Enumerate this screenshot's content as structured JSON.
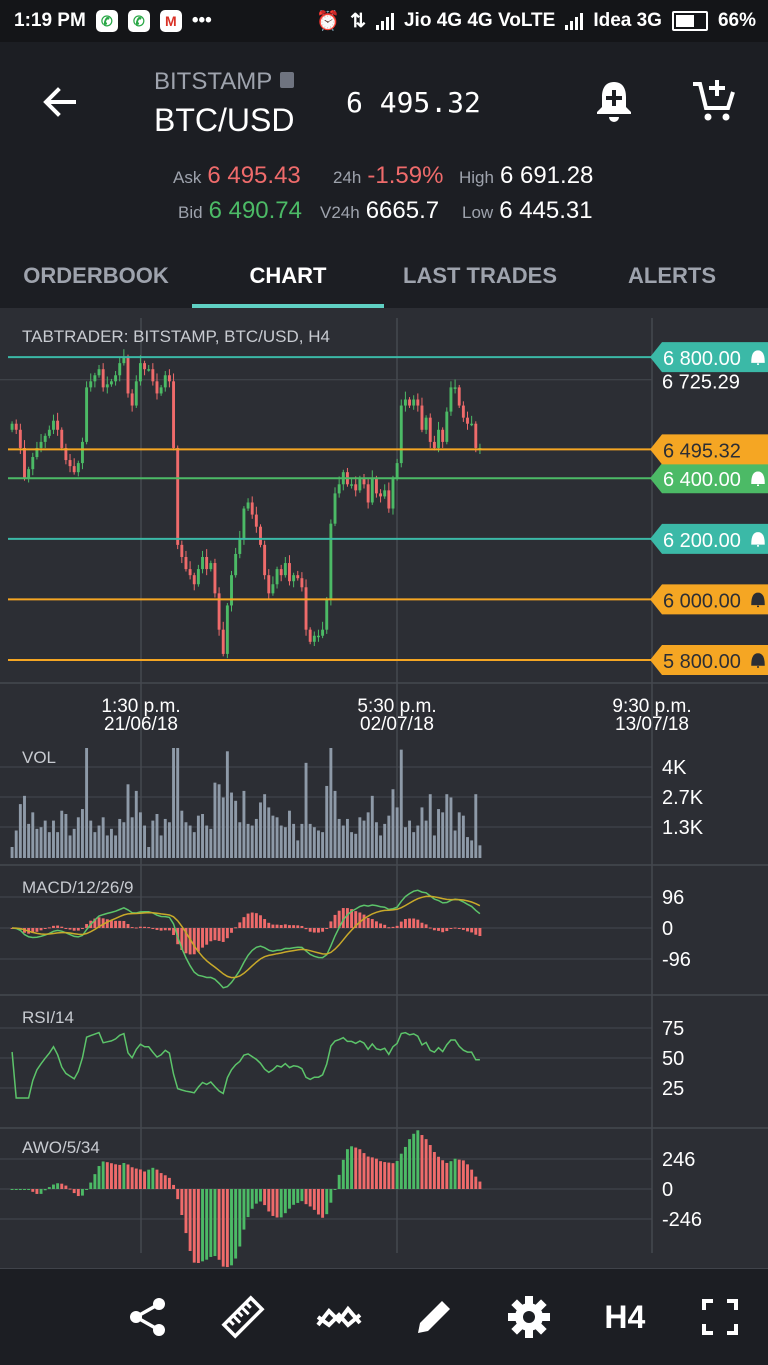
{
  "status_bar": {
    "time": "1:19 PM",
    "dots": "•••",
    "carrier1": "Jio 4G  4G  VoLTE",
    "carrier2": "Idea 3G",
    "battery": "66%",
    "battery_level": 0.66
  },
  "header": {
    "exchange": "BITSTAMP",
    "pair": "BTC/USD",
    "last_price": "6 495.32",
    "ask_label": "Ask",
    "ask_value": "6 495.43",
    "bid_label": "Bid",
    "bid_value": "6 490.74",
    "change_label": "24h",
    "change_value": "-1.59%",
    "vol_label": "V24h",
    "vol_value": "6665.7",
    "high_label": "High",
    "high_value": "6 691.28",
    "low_label": "Low",
    "low_value": "6 445.31"
  },
  "tabs": [
    {
      "label": "ORDERBOOK",
      "active": false
    },
    {
      "label": "CHART",
      "active": true
    },
    {
      "label": "LAST TRADES",
      "active": false
    },
    {
      "label": "ALERTS",
      "active": false
    }
  ],
  "colors": {
    "up": "#4cba66",
    "down": "#ef6b6b",
    "teal": "#3bb9a7",
    "orange": "#f5a623",
    "green_line": "#4cba66",
    "grid": "#45484f",
    "text": "#e8e8e8"
  },
  "chart_data": [
    {
      "type": "candlestick",
      "title": "TABTRADER: BITSTAMP, BTC/USD, H4",
      "ylim": [
        5790,
        6830
      ],
      "y_ticks": [
        "6 725.29"
      ],
      "x_ticks": [
        {
          "time": "1:30 p.m.",
          "date": "21/06/18"
        },
        {
          "time": "5:30 p.m.",
          "date": "02/07/18"
        },
        {
          "time": "9:30 p.m.",
          "date": "13/07/18"
        }
      ],
      "last_price_label": "6 495.32",
      "alert_lines": [
        {
          "value": 6800,
          "label": "6 800.00",
          "color": "teal"
        },
        {
          "value": 6400,
          "label": "6 400.00",
          "color": "green"
        },
        {
          "value": 6200,
          "label": "6 200.00",
          "color": "teal"
        },
        {
          "value": 6000,
          "label": "6 000.00",
          "color": "orange"
        },
        {
          "value": 5800,
          "label": "5 800.00",
          "color": "orange"
        }
      ],
      "closes": [
        6580,
        6560,
        6500,
        6400,
        6430,
        6470,
        6500,
        6520,
        6540,
        6560,
        6590,
        6560,
        6500,
        6460,
        6440,
        6420,
        6450,
        6520,
        6700,
        6720,
        6740,
        6760,
        6700,
        6710,
        6720,
        6740,
        6780,
        6800,
        6680,
        6640,
        6720,
        6780,
        6760,
        6760,
        6720,
        6680,
        6700,
        6740,
        6720,
        6500,
        6180,
        6140,
        6100,
        6080,
        6050,
        6100,
        6140,
        6100,
        6120,
        6020,
        5900,
        5820,
        5980,
        6080,
        6150,
        6200,
        6300,
        6320,
        6280,
        6240,
        6180,
        6080,
        6020,
        6050,
        6100,
        6080,
        6120,
        6060,
        6080,
        6070,
        6040,
        5900,
        5860,
        5880,
        5880,
        5900,
        6000,
        6250,
        6350,
        6380,
        6420,
        6380,
        6380,
        6360,
        6400,
        6380,
        6320,
        6400,
        6350,
        6340,
        6360,
        6300,
        6400,
        6450,
        6640,
        6660,
        6640,
        6660,
        6640,
        6560,
        6600,
        6520,
        6500,
        6560,
        6520,
        6620,
        6700,
        6700,
        6640,
        6600,
        6580,
        6580,
        6500,
        6500
      ],
      "volume": {
        "label": "VOL",
        "ticks": [
          "4K",
          "2.7K",
          "1.3K"
        ],
        "ymax": 4000
      },
      "macd": {
        "label": "MACD/12/26/9",
        "ticks": [
          "96",
          "0",
          "-96"
        ],
        "range": [
          -140,
          140
        ]
      },
      "rsi": {
        "label": "RSI/14",
        "ticks": [
          "75",
          "50",
          "25"
        ],
        "range": [
          10,
          90
        ]
      },
      "awo": {
        "label": "AWO/5/34",
        "ticks": [
          "246",
          "0",
          "-246"
        ],
        "range": [
          -350,
          350
        ]
      }
    }
  ],
  "toolbar": {
    "timeframe": "H4"
  }
}
